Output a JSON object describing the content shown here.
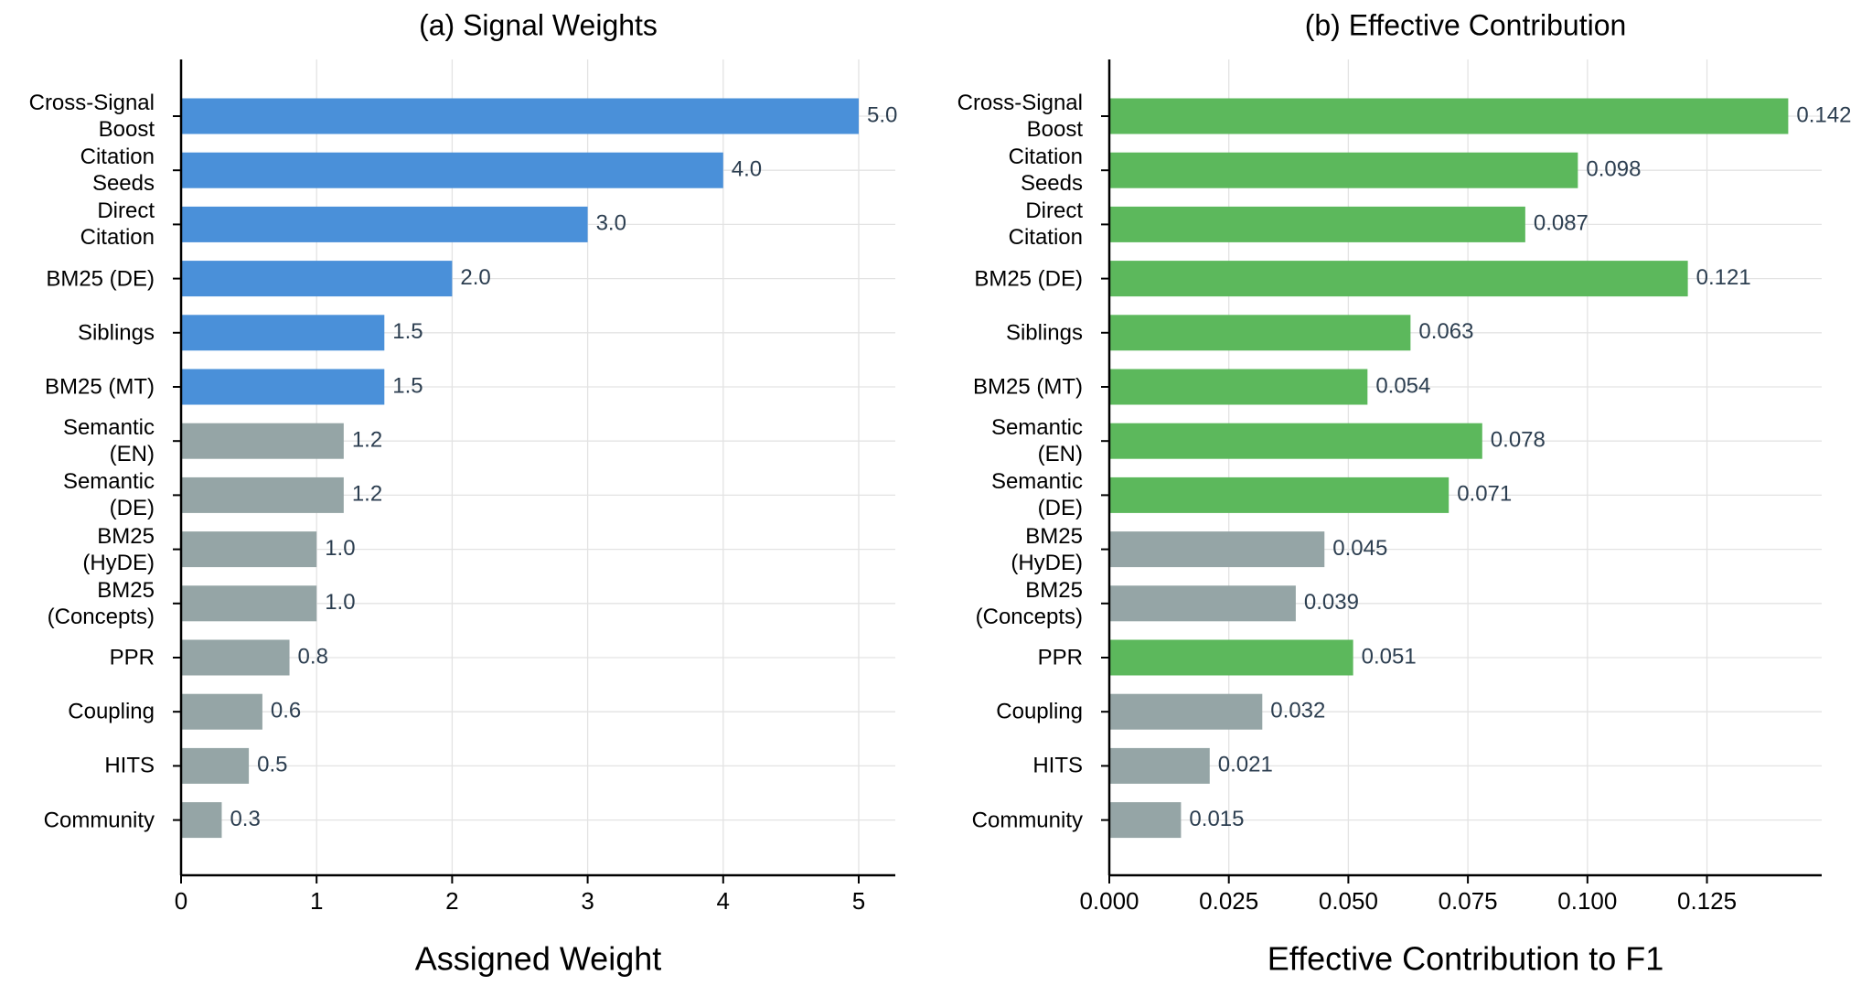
{
  "chart_data": [
    {
      "type": "barh",
      "title": "(a) Signal Weights",
      "x_label": "Assigned Weight",
      "categories": [
        "Cross-Signal\nBoost",
        "Citation\nSeeds",
        "Direct\nCitation",
        "BM25 (DE)",
        "Siblings",
        "BM25 (MT)",
        "Semantic\n(EN)",
        "Semantic\n(DE)",
        "BM25\n(HyDE)",
        "BM25\n(Concepts)",
        "PPR",
        "Coupling",
        "HITS",
        "Community"
      ],
      "values": [
        5.0,
        4.0,
        3.0,
        2.0,
        1.5,
        1.5,
        1.2,
        1.2,
        1.0,
        1.0,
        0.8,
        0.6,
        0.5,
        0.3
      ],
      "value_labels": [
        "5.0",
        "4.0",
        "3.0",
        "2.0",
        "1.5",
        "1.5",
        "1.2",
        "1.2",
        "1.0",
        "1.0",
        "0.8",
        "0.6",
        "0.5",
        "0.3"
      ],
      "colors": [
        "#4a90d9",
        "#4a90d9",
        "#4a90d9",
        "#4a90d9",
        "#4a90d9",
        "#4a90d9",
        "#95a5a6",
        "#95a5a6",
        "#95a5a6",
        "#95a5a6",
        "#95a5a6",
        "#95a5a6",
        "#95a5a6",
        "#95a5a6"
      ],
      "xlim": [
        0,
        5.27
      ],
      "xticks": [
        0,
        1,
        2,
        3,
        4,
        5
      ],
      "grid": true
    },
    {
      "type": "barh",
      "title": "(b) Effective Contribution",
      "x_label": "Effective Contribution to F1",
      "categories": [
        "Cross-Signal\nBoost",
        "Citation\nSeeds",
        "Direct\nCitation",
        "BM25 (DE)",
        "Siblings",
        "BM25 (MT)",
        "Semantic\n(EN)",
        "Semantic\n(DE)",
        "BM25\n(HyDE)",
        "BM25\n(Concepts)",
        "PPR",
        "Coupling",
        "HITS",
        "Community"
      ],
      "values": [
        0.142,
        0.098,
        0.087,
        0.121,
        0.063,
        0.054,
        0.078,
        0.071,
        0.045,
        0.039,
        0.051,
        0.032,
        0.021,
        0.015
      ],
      "colors": [
        "#5cb85c",
        "#5cb85c",
        "#5cb85c",
        "#5cb85c",
        "#5cb85c",
        "#5cb85c",
        "#5cb85c",
        "#5cb85c",
        "#95a5a6",
        "#95a5a6",
        "#5cb85c",
        "#95a5a6",
        "#95a5a6",
        "#95a5a6"
      ],
      "xlim": [
        0,
        0.149
      ],
      "xticks": [
        {
          "value": 0,
          "label": "0.000"
        },
        {
          "value": 0.025,
          "label": "0.025"
        },
        {
          "value": 0.05,
          "label": "0.050"
        },
        {
          "value": 0.075,
          "label": "0.075"
        },
        {
          "value": 0.1,
          "label": "0.100"
        },
        {
          "value": 0.125,
          "label": "0.125"
        }
      ],
      "grid": true
    }
  ]
}
